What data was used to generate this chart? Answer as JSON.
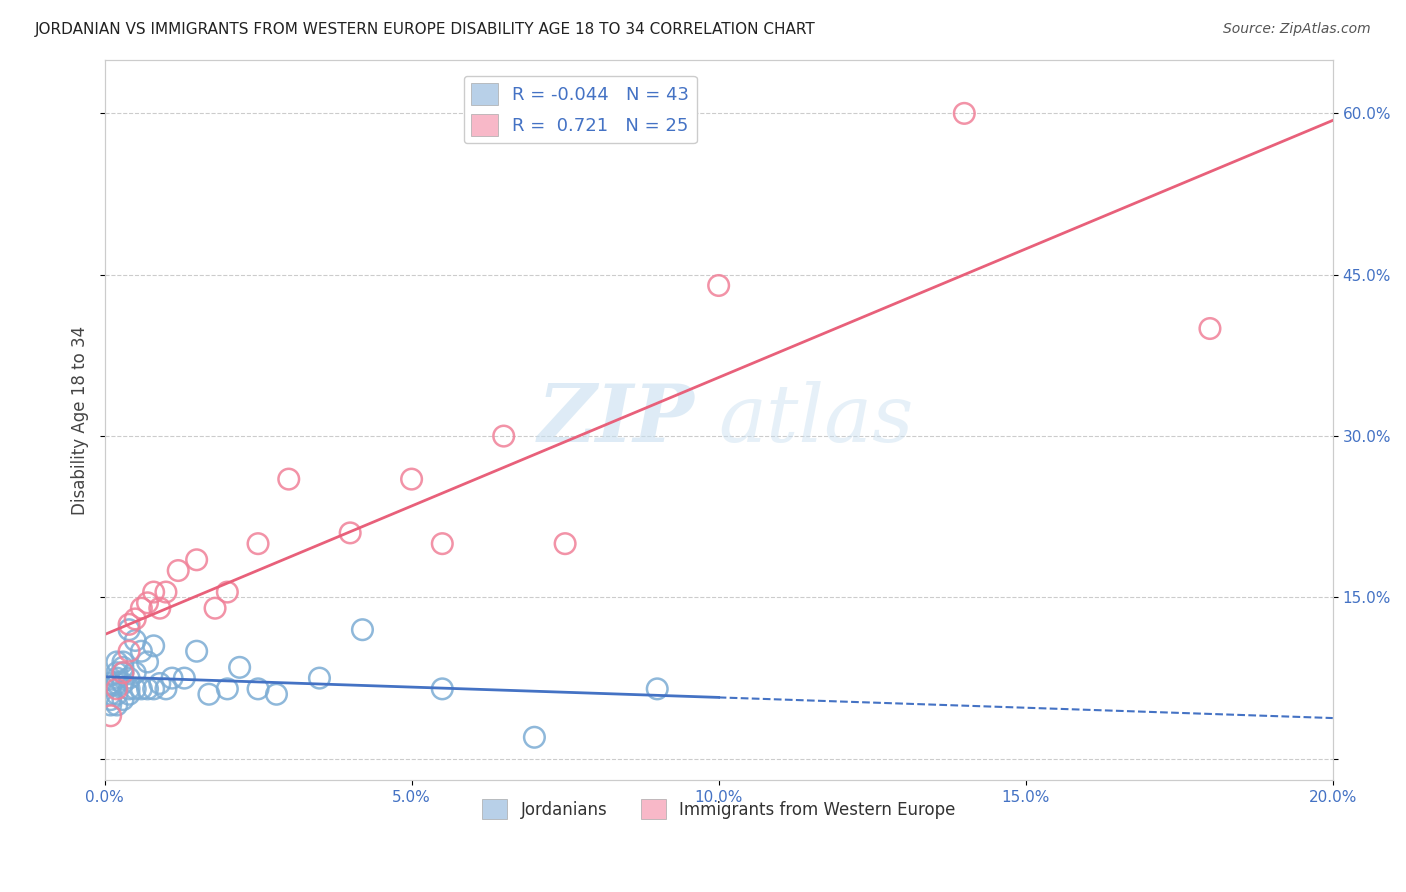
{
  "title": "JORDANIAN VS IMMIGRANTS FROM WESTERN EUROPE DISABILITY AGE 18 TO 34 CORRELATION CHART",
  "source": "Source: ZipAtlas.com",
  "xlabel": "",
  "ylabel": "Disability Age 18 to 34",
  "xlim": [
    0.0,
    0.2
  ],
  "ylim": [
    -0.02,
    0.65
  ],
  "x_ticks": [
    0.0,
    0.05,
    0.1,
    0.15,
    0.2
  ],
  "x_tick_labels": [
    "0.0%",
    "5.0%",
    "10.0%",
    "15.0%",
    "20.0%"
  ],
  "y_ticks": [
    0.0,
    0.15,
    0.3,
    0.45,
    0.6
  ],
  "y_tick_labels": [
    "",
    "15.0%",
    "30.0%",
    "45.0%",
    "60.0%"
  ],
  "jordanian_edge_color": "#7bacd4",
  "immigrant_edge_color": "#f08098",
  "jordanian_line_color": "#4472c4",
  "immigrant_line_color": "#e8607a",
  "legend_text_color": "#4472c4",
  "R_jordanian": -0.044,
  "N_jordanian": 43,
  "R_immigrant": 0.721,
  "N_immigrant": 25,
  "jordanian_x": [
    0.001,
    0.001,
    0.001,
    0.001,
    0.002,
    0.002,
    0.002,
    0.002,
    0.002,
    0.002,
    0.003,
    0.003,
    0.003,
    0.003,
    0.003,
    0.004,
    0.004,
    0.004,
    0.004,
    0.005,
    0.005,
    0.005,
    0.006,
    0.006,
    0.007,
    0.007,
    0.008,
    0.008,
    0.009,
    0.01,
    0.011,
    0.013,
    0.015,
    0.017,
    0.02,
    0.022,
    0.025,
    0.028,
    0.035,
    0.042,
    0.055,
    0.07,
    0.09
  ],
  "jordanian_y": [
    0.05,
    0.055,
    0.06,
    0.07,
    0.05,
    0.06,
    0.07,
    0.075,
    0.08,
    0.09,
    0.055,
    0.07,
    0.08,
    0.085,
    0.09,
    0.06,
    0.065,
    0.075,
    0.12,
    0.065,
    0.08,
    0.11,
    0.065,
    0.1,
    0.065,
    0.09,
    0.065,
    0.105,
    0.07,
    0.065,
    0.075,
    0.075,
    0.1,
    0.06,
    0.065,
    0.085,
    0.065,
    0.06,
    0.075,
    0.12,
    0.065,
    0.02,
    0.065
  ],
  "immigrant_x": [
    0.001,
    0.002,
    0.003,
    0.004,
    0.004,
    0.005,
    0.006,
    0.007,
    0.008,
    0.009,
    0.01,
    0.012,
    0.015,
    0.018,
    0.02,
    0.025,
    0.03,
    0.04,
    0.05,
    0.055,
    0.065,
    0.075,
    0.1,
    0.14,
    0.18
  ],
  "immigrant_y": [
    0.04,
    0.065,
    0.08,
    0.1,
    0.125,
    0.13,
    0.14,
    0.145,
    0.155,
    0.14,
    0.155,
    0.175,
    0.185,
    0.14,
    0.155,
    0.2,
    0.26,
    0.21,
    0.26,
    0.2,
    0.3,
    0.2,
    0.44,
    0.6,
    0.4
  ],
  "watermark_zip": "ZIP",
  "watermark_atlas": "atlas",
  "background_color": "#ffffff",
  "grid_color": "#cccccc"
}
